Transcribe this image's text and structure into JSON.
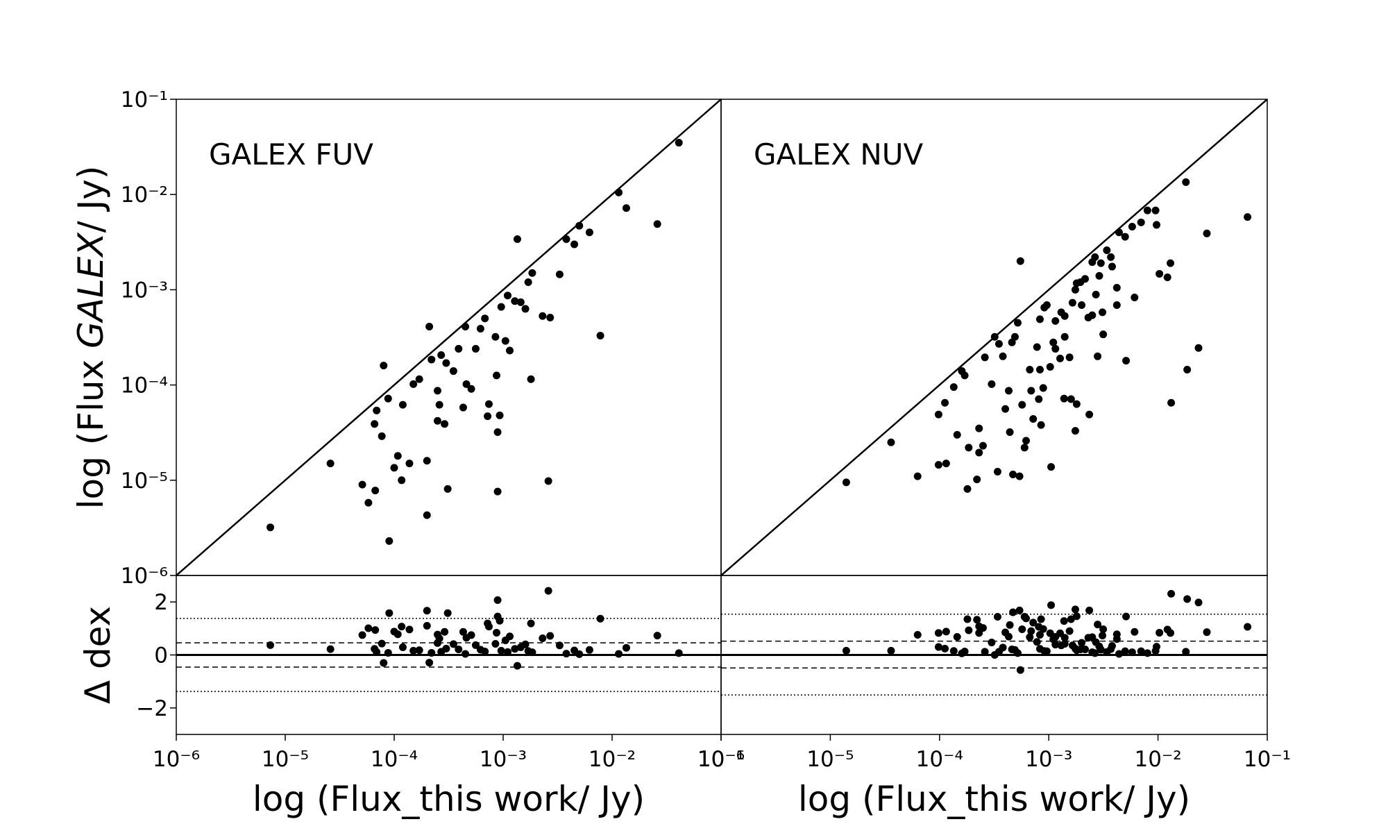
{
  "chart_data": [
    {
      "type": "scatter",
      "annotation": "GALEX FUV",
      "ylabel_parts": [
        {
          "text": "log (Flux "
        },
        {
          "text": "GALEX",
          "italic": true
        },
        {
          "text": "/ Jy)"
        }
      ],
      "xscale": "log",
      "yscale": "log",
      "xlim": [
        1e-06,
        0.1
      ],
      "ylim": [
        1e-06,
        0.1
      ],
      "yticks": [
        {
          "value": 1e-06,
          "label": "10⁻⁶"
        },
        {
          "value": 1e-05,
          "label": "10⁻⁵"
        },
        {
          "value": 0.0001,
          "label": "10⁻⁴"
        },
        {
          "value": 0.001,
          "label": "10⁻³"
        },
        {
          "value": 0.01,
          "label": "10⁻²"
        },
        {
          "value": 0.1,
          "label": "10⁻¹"
        }
      ],
      "identity_line": true,
      "color": "#000000",
      "x": [
        7.3e-06,
        2.6e-05,
        5.1e-05,
        5.8e-05,
        6.7e-05,
        9e-05,
        6.9e-05,
        8e-05,
        6.6e-05,
        7.7e-05,
        8.8e-05,
        0.0001,
        0.000108,
        0.000117,
        0.00012,
        0.000138,
        0.00015,
        0.00017,
        0.0002,
        0.0002,
        0.00021,
        0.00022,
        0.00025,
        0.00025,
        0.00026,
        0.00027,
        0.00029,
        0.0003,
        0.00031,
        0.00035,
        0.00039,
        0.00043,
        0.00045,
        0.00046,
        0.00051,
        0.00056,
        0.00062,
        0.00068,
        0.00072,
        0.00074,
        0.00085,
        0.00087,
        0.00089,
        0.00089,
        0.00093,
        0.00096,
        0.00105,
        0.0011,
        0.00115,
        0.00128,
        0.00135,
        0.00145,
        0.0016,
        0.0017,
        0.0018,
        0.00185,
        0.0023,
        0.0026,
        0.0027,
        0.0033,
        0.0038,
        0.0045,
        0.005,
        0.0062,
        0.0078,
        0.0115,
        0.0135,
        0.026,
        0.041
      ],
      "values": [
        3.2e-06,
        1.5e-05,
        9e-06,
        5.8e-06,
        7.8e-06,
        2.3e-06,
        5.4e-05,
        0.00016,
        3.9e-05,
        2.9e-05,
        7.2e-05,
        1.35e-05,
        1.8e-05,
        1e-05,
        6.2e-05,
        1.5e-05,
        0.000102,
        0.000115,
        1.6e-05,
        4.3e-06,
        0.00041,
        0.000185,
        8.7e-05,
        4.2e-05,
        6.2e-05,
        0.000206,
        3.9e-05,
        0.00017,
        8.1e-06,
        0.00014,
        0.00024,
        5.8e-05,
        0.00041,
        0.000102,
        9.1e-05,
        0.00024,
        0.00039,
        0.0005,
        4.7e-05,
        6.3e-05,
        0.00032,
        0.000126,
        3.2e-05,
        7.6e-06,
        4.8e-05,
        0.00066,
        0.00029,
        0.00087,
        0.00023,
        0.00076,
        0.0034,
        0.00074,
        0.00063,
        0.0012,
        0.000115,
        0.0015,
        0.00053,
        9.8e-06,
        0.00051,
        0.00145,
        0.0034,
        0.003,
        0.0047,
        0.004,
        0.00033,
        0.0105,
        0.0072,
        0.0049,
        0.035
      ]
    },
    {
      "type": "scatter",
      "ylabel": "Δ dex",
      "xlabel": "log (Flux_this work/ Jy)",
      "xscale": "log",
      "xlim": [
        1e-06,
        0.1
      ],
      "ylim": [
        -3,
        3
      ],
      "xticks": [
        {
          "value": 1e-06,
          "label": "10⁻⁶"
        },
        {
          "value": 1e-05,
          "label": "10⁻⁵"
        },
        {
          "value": 0.0001,
          "label": "10⁻⁴"
        },
        {
          "value": 0.001,
          "label": "10⁻³"
        },
        {
          "value": 0.01,
          "label": "10⁻²"
        },
        {
          "value": 0.1,
          "label": "10⁻¹"
        }
      ],
      "yticks": [
        {
          "value": -2,
          "label": "−2"
        },
        0,
        2
      ],
      "reference_lines": [
        {
          "value": 0,
          "style": "solid"
        },
        {
          "value": 0.46,
          "style": "dashed"
        },
        {
          "value": -0.46,
          "style": "dashed"
        },
        {
          "value": 1.38,
          "style": "dotted"
        },
        {
          "value": -1.38,
          "style": "dotted"
        }
      ],
      "color": "#000000",
      "x": [
        7.3e-06,
        2.6e-05,
        5.1e-05,
        5.8e-05,
        6.7e-05,
        9e-05,
        6.9e-05,
        8e-05,
        6.6e-05,
        7.7e-05,
        8.8e-05,
        0.0001,
        0.000108,
        0.000117,
        0.00012,
        0.000138,
        0.00015,
        0.00017,
        0.0002,
        0.0002,
        0.00021,
        0.00022,
        0.00025,
        0.00025,
        0.00026,
        0.00027,
        0.00029,
        0.0003,
        0.00031,
        0.00035,
        0.00039,
        0.00043,
        0.00045,
        0.00046,
        0.00051,
        0.00056,
        0.00062,
        0.00068,
        0.00072,
        0.00074,
        0.00085,
        0.00087,
        0.00089,
        0.00089,
        0.00093,
        0.00096,
        0.00105,
        0.0011,
        0.00115,
        0.00128,
        0.00135,
        0.00145,
        0.0016,
        0.0017,
        0.0018,
        0.00185,
        0.0023,
        0.0026,
        0.0027,
        0.0033,
        0.0038,
        0.0045,
        0.005,
        0.0062,
        0.0078,
        0.0115,
        0.0135,
        0.026,
        0.041
      ],
      "values": [
        0.37,
        0.22,
        0.75,
        1.01,
        0.94,
        1.58,
        0.11,
        -0.3,
        0.23,
        0.43,
        0.08,
        0.88,
        0.78,
        1.07,
        0.29,
        0.96,
        0.16,
        0.18,
        1.1,
        1.67,
        -0.29,
        0.08,
        0.45,
        0.77,
        0.62,
        0.12,
        0.87,
        0.24,
        1.58,
        0.41,
        0.21,
        0.87,
        0.04,
        0.65,
        0.75,
        0.37,
        0.2,
        0.13,
        1.19,
        1.07,
        0.42,
        0.84,
        1.45,
        2.07,
        1.29,
        0.16,
        0.55,
        0.11,
        0.7,
        0.23,
        -0.41,
        0.29,
        0.4,
        0.15,
        1.19,
        0.1,
        0.63,
        2.42,
        0.72,
        0.36,
        0.05,
        0.17,
        0.03,
        0.19,
        1.37,
        0.04,
        0.27,
        0.73,
        0.07
      ]
    },
    {
      "type": "scatter",
      "annotation": "GALEX NUV",
      "xscale": "log",
      "yscale": "log",
      "xlim": [
        1e-06,
        0.1
      ],
      "ylim": [
        1e-06,
        0.1
      ],
      "identity_line": true,
      "color": "#000000",
      "x": [
        1.4e-05,
        3.6e-05,
        6.3e-05,
        9.8e-05,
        0.000115,
        9.8e-05,
        0.000112,
        0.000135,
        0.000145,
        0.00016,
        0.00017,
        0.00018,
        0.000185,
        0.00022,
        0.00023,
        0.00023,
        0.00025,
        0.00026,
        0.0003,
        0.00032,
        0.00034,
        0.00035,
        0.00038,
        0.0004,
        0.00043,
        0.00044,
        0.00046,
        0.00047,
        0.00049,
        0.00052,
        0.00054,
        0.00055,
        0.00057,
        0.0006,
        0.00062,
        0.00067,
        0.00069,
        0.00072,
        0.00078,
        0.00081,
        0.00083,
        0.00083,
        0.00085,
        0.00089,
        0.00091,
        0.00096,
        0.00103,
        0.0011,
        0.00105,
        0.00115,
        0.00115,
        0.00127,
        0.0013,
        0.00138,
        0.0014,
        0.0014,
        0.00155,
        0.0016,
        0.00165,
        0.00175,
        0.00175,
        0.0018,
        0.0018,
        0.00195,
        0.002,
        0.00215,
        0.0023,
        0.00235,
        0.0025,
        0.0025,
        0.00265,
        0.0027,
        0.0028,
        0.0029,
        0.003,
        0.0031,
        0.00315,
        0.0034,
        0.0037,
        0.0038,
        0.0044,
        0.0042,
        0.0042,
        0.005,
        0.0051,
        0.0058,
        0.0061,
        0.007,
        0.008,
        0.0095,
        0.0097,
        0.0103,
        0.0122,
        0.013,
        0.0132,
        0.018,
        0.0185,
        0.0235,
        0.028,
        0.066
      ],
      "values": [
        9.5e-06,
        2.5e-05,
        1.1e-05,
        1.45e-05,
        1.5e-05,
        4.9e-05,
        6.5e-05,
        9.5e-05,
        3e-05,
        0.00014,
        0.000126,
        8.1e-06,
        2.2e-05,
        1.02e-05,
        3.5e-05,
        1.95e-05,
        2.3e-05,
        0.000195,
        0.000102,
        0.00032,
        1.23e-05,
        0.00027,
        0.0002,
        5.6e-05,
        8.7e-05,
        3.2e-05,
        0.00028,
        1.15e-05,
        0.00032,
        0.00045,
        1.1e-05,
        0.002,
        6.2e-05,
        2.2e-05,
        2.6e-05,
        0.000145,
        8.7e-05,
        4.4e-05,
        0.00025,
        7.1e-05,
        0.00049,
        0.000145,
        3.8e-05,
        9.3e-05,
        0.00065,
        0.00069,
        0.000155,
        0.00028,
        1.38e-05,
        0.00024,
        0.00047,
        0.00019,
        0.00058,
        7.2e-05,
        0.00032,
        0.00053,
        0.000195,
        7.1e-05,
        0.00073,
        3.3e-05,
        0.001,
        6.3e-05,
        0.00117,
        0.0012,
        0.00069,
        0.0013,
        0.00051,
        4.9e-05,
        0.00195,
        0.00054,
        0.0022,
        0.00089,
        0.0002,
        0.0014,
        0.0019,
        0.00058,
        0.00034,
        0.0026,
        0.0022,
        0.00175,
        0.004,
        0.00105,
        0.00069,
        0.0036,
        0.00018,
        0.0046,
        0.00083,
        0.0051,
        0.0068,
        0.0068,
        0.0048,
        0.00147,
        0.00135,
        0.0019,
        6.5e-05,
        0.0135,
        0.000145,
        0.000245,
        0.0039,
        0.0058
      ]
    },
    {
      "type": "scatter",
      "xlabel": "log (Flux_this work/ Jy)",
      "xscale": "log",
      "xlim": [
        1e-06,
        0.1
      ],
      "ylim": [
        -3,
        3
      ],
      "xticks": [
        {
          "value": 1e-06,
          "label": "10⁻⁶"
        },
        {
          "value": 1e-05,
          "label": "10⁻⁵"
        },
        {
          "value": 0.0001,
          "label": "10⁻⁴"
        },
        {
          "value": 0.001,
          "label": "10⁻³"
        },
        {
          "value": 0.01,
          "label": "10⁻²"
        },
        {
          "value": 0.1,
          "label": "10⁻¹"
        }
      ],
      "reference_lines": [
        {
          "value": 0,
          "style": "solid"
        },
        {
          "value": 0.52,
          "style": "dashed"
        },
        {
          "value": -0.49,
          "style": "dashed"
        },
        {
          "value": 1.54,
          "style": "dotted"
        },
        {
          "value": -1.51,
          "style": "dotted"
        }
      ],
      "color": "#000000",
      "x": [
        1.4e-05,
        3.6e-05,
        6.3e-05,
        9.8e-05,
        0.000115,
        9.8e-05,
        0.000112,
        0.000135,
        0.000145,
        0.00016,
        0.00017,
        0.00018,
        0.000185,
        0.00022,
        0.00023,
        0.00023,
        0.00025,
        0.00026,
        0.0003,
        0.00032,
        0.00034,
        0.00035,
        0.00038,
        0.0004,
        0.00043,
        0.00044,
        0.00046,
        0.00047,
        0.00049,
        0.00052,
        0.00054,
        0.00055,
        0.00057,
        0.0006,
        0.00062,
        0.00067,
        0.00069,
        0.00072,
        0.00078,
        0.00081,
        0.00083,
        0.00083,
        0.00085,
        0.00089,
        0.00091,
        0.00096,
        0.00103,
        0.0011,
        0.00105,
        0.00115,
        0.00115,
        0.00127,
        0.0013,
        0.00138,
        0.0014,
        0.0014,
        0.00155,
        0.0016,
        0.00165,
        0.00175,
        0.00175,
        0.0018,
        0.0018,
        0.00195,
        0.002,
        0.00215,
        0.0023,
        0.00235,
        0.0025,
        0.0025,
        0.00265,
        0.0027,
        0.0028,
        0.0029,
        0.003,
        0.0031,
        0.00315,
        0.0034,
        0.0037,
        0.0038,
        0.0044,
        0.0042,
        0.0042,
        0.005,
        0.0051,
        0.0058,
        0.0061,
        0.007,
        0.008,
        0.0095,
        0.0097,
        0.0103,
        0.0122,
        0.013,
        0.0132,
        0.018,
        0.0185,
        0.0235,
        0.028,
        0.066
      ],
      "values": [
        0.16,
        0.16,
        0.76,
        0.83,
        0.88,
        0.3,
        0.24,
        0.15,
        0.68,
        0.06,
        0.13,
        1.35,
        0.93,
        1.33,
        0.83,
        1.08,
        1.02,
        0.12,
        0.47,
        0.0,
        1.44,
        0.12,
        0.28,
        0.85,
        0.69,
        1.13,
        0.21,
        1.61,
        0.19,
        0.07,
        1.68,
        -0.57,
        0.97,
        1.44,
        1.38,
        0.67,
        0.9,
        1.22,
        0.49,
        1.06,
        0.23,
        0.76,
        1.35,
        0.98,
        0.15,
        0.14,
        0.82,
        0.59,
        1.88,
        0.68,
        0.39,
        0.82,
        0.36,
        1.28,
        0.65,
        0.42,
        0.9,
        1.35,
        0.36,
        1.72,
        0.24,
        1.46,
        0.18,
        0.21,
        0.46,
        0.21,
        0.65,
        1.68,
        0.1,
        0.67,
        0.07,
        0.48,
        1.15,
        0.32,
        0.2,
        0.73,
        0.97,
        0.11,
        0.22,
        0.34,
        0.04,
        0.6,
        0.78,
        0.14,
        1.45,
        0.1,
        0.87,
        0.14,
        0.07,
        0.15,
        0.31,
        0.84,
        0.96,
        0.83,
        2.31,
        0.12,
        2.11,
        1.98,
        0.86,
        1.06
      ]
    }
  ]
}
